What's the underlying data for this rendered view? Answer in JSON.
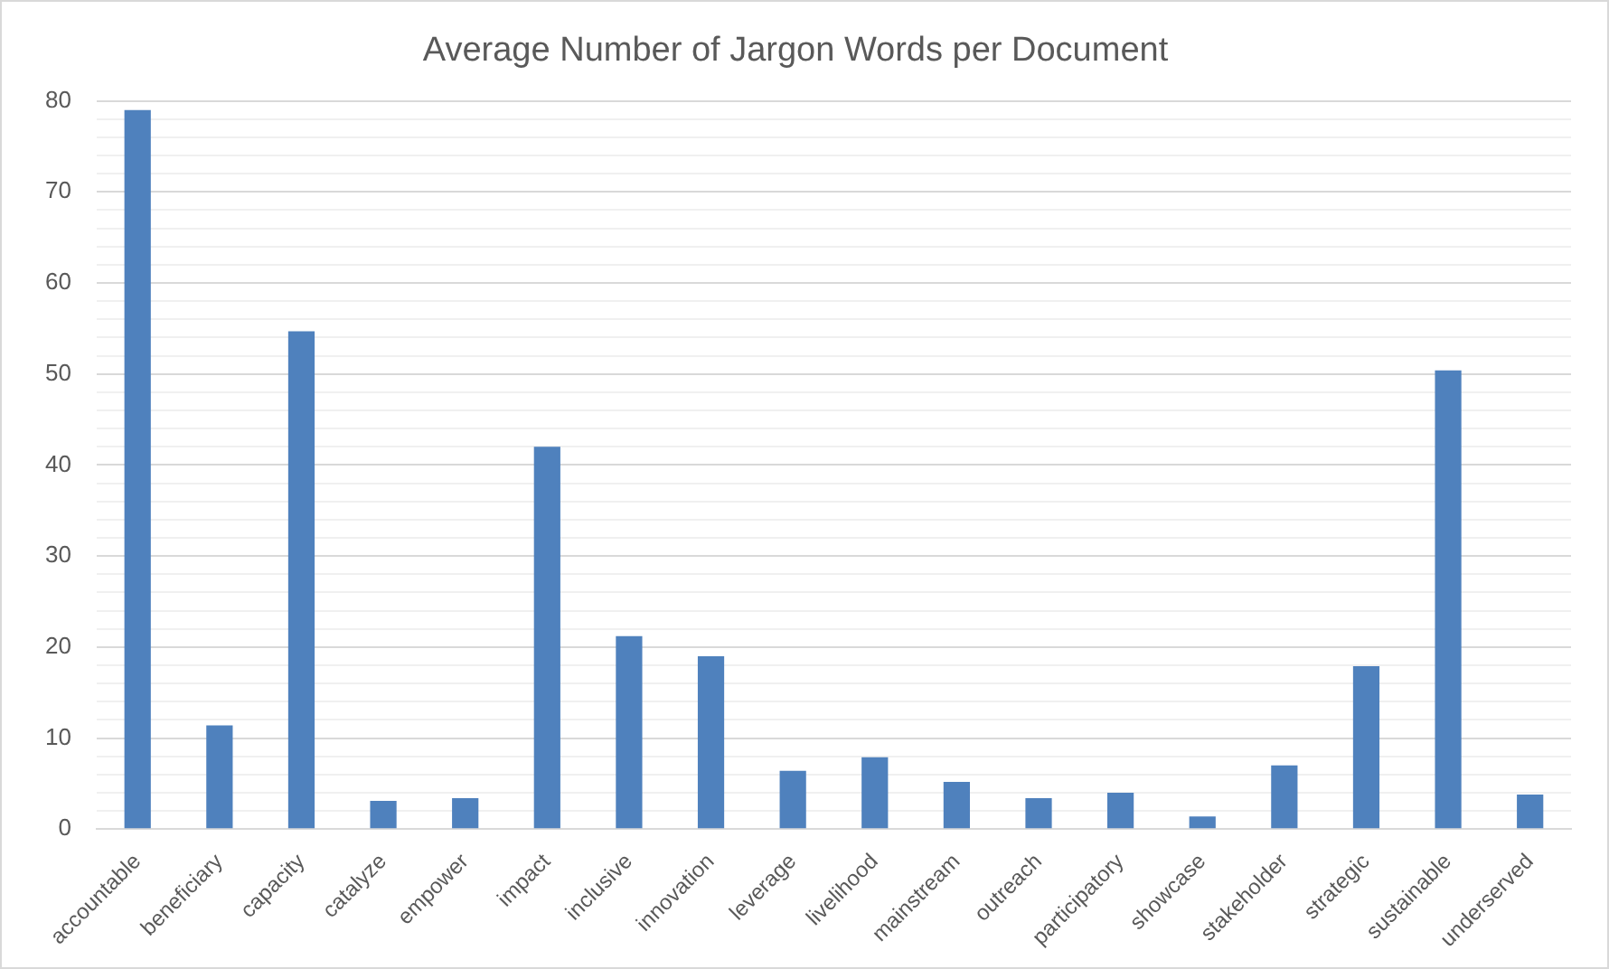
{
  "chart_data": {
    "type": "bar",
    "title": "Average Number of Jargon Words per Document",
    "categories": [
      "accountable",
      "beneficiary",
      "capacity",
      "catalyze",
      "empower",
      "impact",
      "inclusive",
      "innovation",
      "leverage",
      "livelihood",
      "mainstream",
      "outreach",
      "participatory",
      "showcase",
      "stakeholder",
      "strategic",
      "sustainable",
      "underserved"
    ],
    "values": [
      79,
      11.4,
      54.7,
      3.1,
      3.4,
      42,
      21.2,
      19,
      6.4,
      7.9,
      5.2,
      3.4,
      4,
      1.4,
      7,
      17.9,
      50.4,
      3.8
    ],
    "color": "#4f81bd",
    "ylim": [
      0,
      80
    ],
    "yticks": [
      0,
      {
        "value": 2,
        "label": null
      },
      {
        "value": 4,
        "label": null
      },
      {
        "value": 6,
        "label": null
      },
      {
        "value": 8,
        "label": null
      },
      10,
      {
        "value": 12,
        "label": null
      },
      {
        "value": 14,
        "label": null
      },
      {
        "value": 16,
        "label": null
      },
      {
        "value": 18,
        "label": null
      },
      20,
      {
        "value": 22,
        "label": null
      },
      {
        "value": 24,
        "label": null
      },
      {
        "value": 26,
        "label": null
      },
      {
        "value": 28,
        "label": null
      },
      30,
      {
        "value": 32,
        "label": null
      },
      {
        "value": 34,
        "label": null
      },
      {
        "value": 36,
        "label": null
      },
      {
        "value": 38,
        "label": null
      },
      40,
      {
        "value": 42,
        "label": null
      },
      {
        "value": 44,
        "label": null
      },
      {
        "value": 46,
        "label": null
      },
      {
        "value": 48,
        "label": null
      },
      50,
      {
        "value": 52,
        "label": null
      },
      {
        "value": 54,
        "label": null
      },
      {
        "value": 56,
        "label": null
      },
      {
        "value": 58,
        "label": null
      },
      60,
      {
        "value": 62,
        "label": null
      },
      {
        "value": 64,
        "label": null
      },
      {
        "value": 66,
        "label": null
      },
      {
        "value": 68,
        "label": null
      },
      70,
      {
        "value": 72,
        "label": null
      },
      {
        "value": 74,
        "label": null
      },
      {
        "value": 76,
        "label": null
      },
      {
        "value": 78,
        "label": null
      },
      80
    ],
    "grid": true,
    "legend": false
  }
}
